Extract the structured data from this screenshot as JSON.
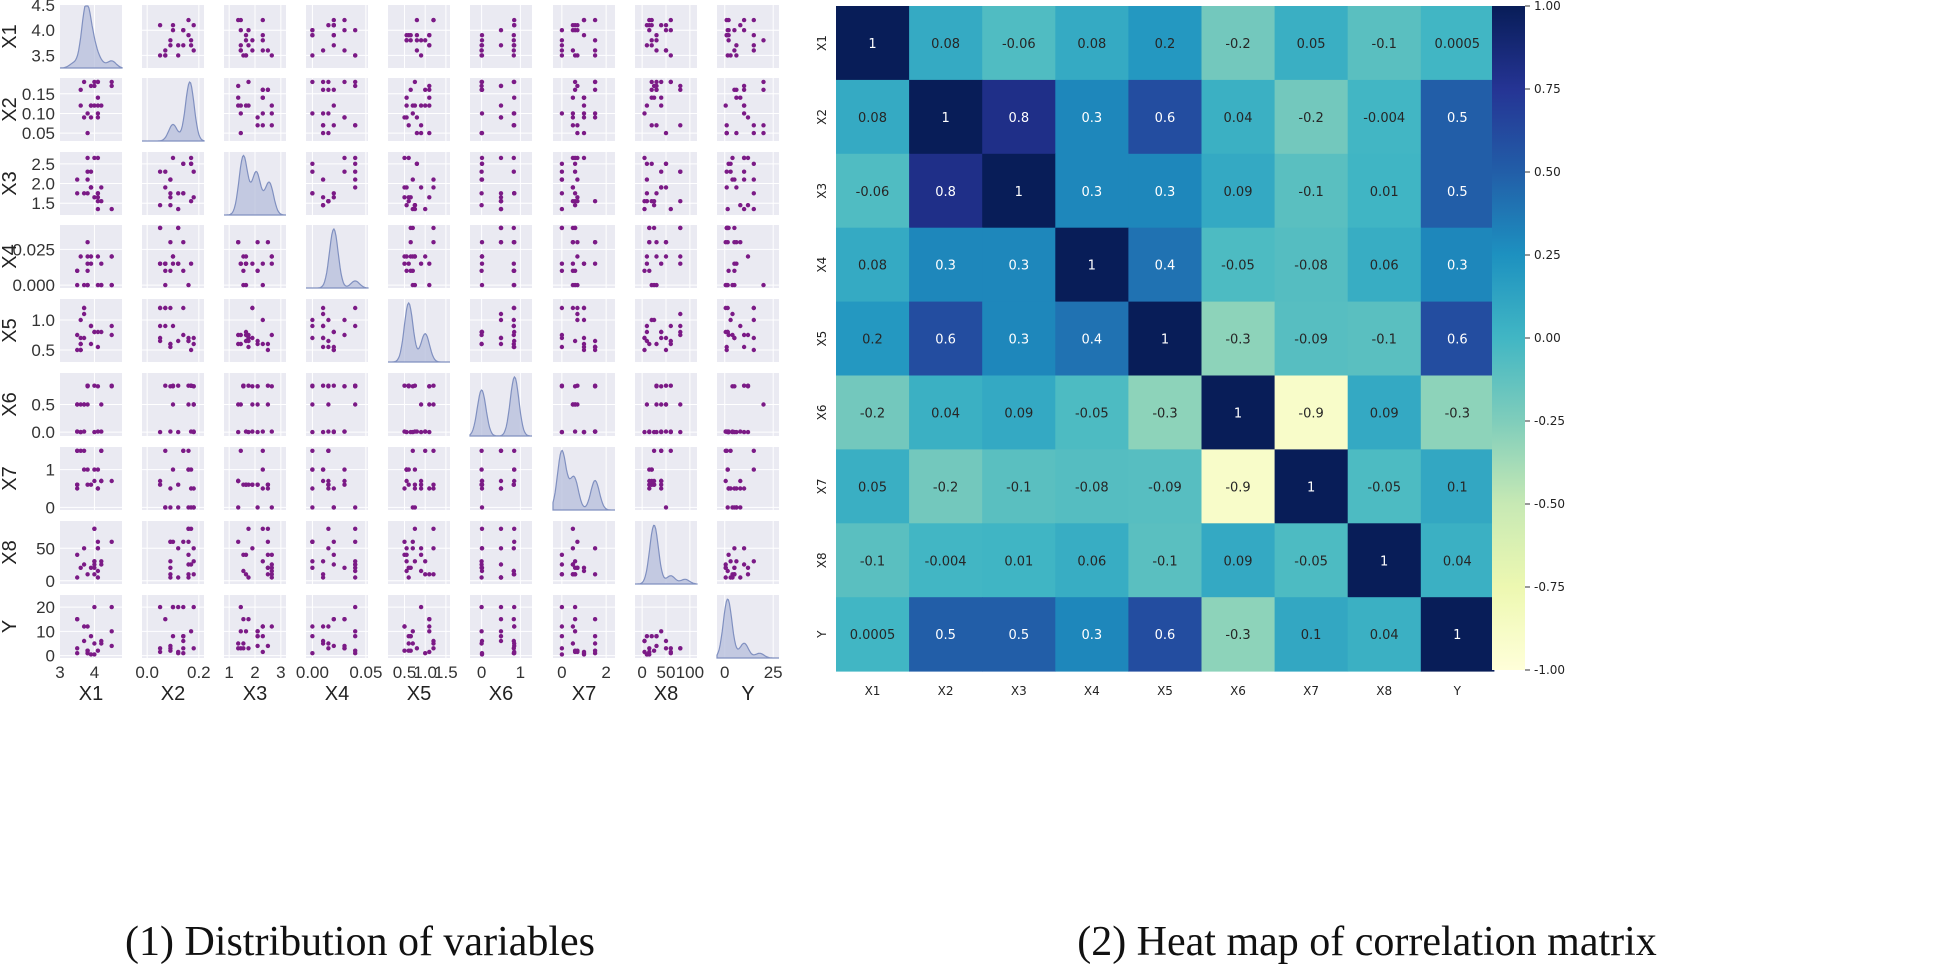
{
  "captions": {
    "left": "(1) Distribution of variables",
    "right": "(2) Heat map of correlation matrix"
  },
  "colors": {
    "panel_bg": "#eaeaf2",
    "grid": "#ffffff",
    "point": "#7b1a86",
    "kde_line": "#8090c0",
    "kde_fill": "#b5bedb"
  },
  "chart_data": [
    {
      "type": "scatter",
      "title": "Distribution of variables",
      "variables": [
        "X1",
        "X2",
        "X3",
        "X4",
        "X5",
        "X6",
        "X7",
        "X8",
        "Y"
      ],
      "x_ticks": {
        "X1": {
          "range": [
            3.0,
            4.8
          ],
          "ticks": [
            3,
            4
          ],
          "labels": [
            "3",
            "4"
          ]
        },
        "X2": {
          "range": [
            -0.02,
            0.22
          ],
          "ticks": [
            0.0,
            0.2
          ],
          "labels": [
            "0.0",
            "0.2"
          ]
        },
        "X3": {
          "range": [
            0.8,
            3.2
          ],
          "ticks": [
            1,
            2,
            3
          ],
          "labels": [
            "1",
            "2",
            "3"
          ]
        },
        "X4": {
          "range": [
            -0.006,
            0.052
          ],
          "ticks": [
            0.0,
            0.05
          ],
          "labels": [
            "0.00",
            "0.05"
          ]
        },
        "X5": {
          "range": [
            0.1,
            1.6
          ],
          "ticks": [
            0.5,
            1.0,
            1.5
          ],
          "labels": [
            "0.5",
            "1.0",
            "1.5"
          ]
        },
        "X6": {
          "range": [
            -0.3,
            1.3
          ],
          "ticks": [
            0,
            1
          ],
          "labels": [
            "0",
            "1"
          ]
        },
        "X7": {
          "range": [
            -0.4,
            2.4
          ],
          "ticks": [
            0,
            2
          ],
          "labels": [
            "0",
            "2"
          ]
        },
        "X8": {
          "range": [
            -15,
            115
          ],
          "ticks": [
            0,
            50,
            100
          ],
          "labels": [
            "0",
            "50",
            "100"
          ]
        },
        "Y": {
          "range": [
            -4,
            28
          ],
          "ticks": [
            0,
            25
          ],
          "labels": [
            "0",
            "25"
          ]
        }
      },
      "y_ticks": {
        "X1": {
          "range": [
            3.25,
            4.5
          ],
          "ticks": [
            3.5,
            4.0,
            4.5
          ],
          "labels": [
            "3.5",
            "4.0",
            "4.5"
          ]
        },
        "X2": {
          "range": [
            0.03,
            0.19
          ],
          "ticks": [
            0.05,
            0.1,
            0.15
          ],
          "labels": [
            "0.05",
            "0.10",
            "0.15"
          ]
        },
        "X3": {
          "range": [
            1.2,
            2.8
          ],
          "ticks": [
            1.5,
            2.0,
            2.5
          ],
          "labels": [
            "1.5",
            "2.0",
            "2.5"
          ]
        },
        "X4": {
          "range": [
            -0.002,
            0.042
          ],
          "ticks": [
            0.0,
            0.025
          ],
          "labels": [
            "0.000",
            "0.025"
          ]
        },
        "X5": {
          "range": [
            0.3,
            1.35
          ],
          "ticks": [
            0.5,
            1.0
          ],
          "labels": [
            "0.5",
            "1.0"
          ]
        },
        "X6": {
          "range": [
            -0.07,
            1.07
          ],
          "ticks": [
            0.0,
            0.5
          ],
          "labels": [
            "0.0",
            "0.5"
          ]
        },
        "X7": {
          "range": [
            -0.07,
            1.6
          ],
          "ticks": [
            0,
            1
          ],
          "labels": [
            "0",
            "1"
          ]
        },
        "X8": {
          "range": [
            -5,
            92
          ],
          "ticks": [
            0,
            50
          ],
          "labels": [
            "0",
            "50"
          ]
        },
        "Y": {
          "range": [
            -1,
            25
          ],
          "ticks": [
            0,
            10,
            20
          ],
          "labels": [
            "0",
            "10",
            "20"
          ]
        }
      },
      "levels": {
        "X1": [
          3.5,
          3.6,
          3.7,
          3.8,
          3.9,
          4.0,
          4.1,
          4.2,
          4.5
        ],
        "X2": [
          0.05,
          0.07,
          0.09,
          0.1,
          0.12,
          0.14,
          0.16,
          0.17,
          0.18
        ],
        "X3": [
          1.35,
          1.45,
          1.55,
          1.65,
          1.75,
          1.9,
          2.1,
          2.3,
          2.5,
          2.65
        ],
        "X4": [
          0.0,
          0.01,
          0.015,
          0.02,
          0.03,
          0.04
        ],
        "X5": [
          0.5,
          0.55,
          0.6,
          0.65,
          0.7,
          0.75,
          0.8,
          0.9,
          1.0,
          1.1,
          1.2
        ],
        "X6": [
          0.0,
          0.01,
          0.5,
          0.83,
          0.84
        ],
        "X7": [
          0.0,
          0.5,
          0.6,
          0.7,
          1.0,
          1.5
        ],
        "X8": [
          5,
          10,
          15,
          20,
          25,
          30,
          40,
          50,
          60,
          80
        ],
        "Y": [
          0.5,
          1,
          1.5,
          2,
          3,
          4,
          5,
          6,
          8,
          10,
          12,
          15,
          20
        ]
      },
      "diagonal_kde": {
        "X1": [
          [
            3.4,
            0.08
          ],
          [
            3.75,
            1.0
          ],
          [
            3.95,
            0.35
          ],
          [
            4.15,
            0.1
          ],
          [
            4.5,
            0.12
          ]
        ],
        "X2": [
          [
            0.1,
            0.28
          ],
          [
            0.165,
            1.0
          ]
        ],
        "X3": [
          [
            1.55,
            1.0
          ],
          [
            2.05,
            0.72
          ],
          [
            2.55,
            0.55
          ]
        ],
        "X4": [
          [
            0.02,
            1.0
          ],
          [
            0.04,
            0.12
          ]
        ],
        "X5": [
          [
            0.6,
            1.0
          ],
          [
            1.0,
            0.48
          ]
        ],
        "X6": [
          [
            0.0,
            0.78
          ],
          [
            0.85,
            1.0
          ]
        ],
        "X7": [
          [
            0.0,
            1.0
          ],
          [
            0.55,
            0.55
          ],
          [
            1.5,
            0.5
          ]
        ],
        "X8": [
          [
            25,
            1.0
          ],
          [
            60,
            0.14
          ],
          [
            90,
            0.08
          ]
        ],
        "Y": [
          [
            1.5,
            1.0
          ],
          [
            10,
            0.25
          ],
          [
            18,
            0.08
          ]
        ]
      },
      "point_color": "#7b1a86"
    },
    {
      "type": "heatmap",
      "title": "Heat map of correlation matrix",
      "labels": [
        "X1",
        "X2",
        "X3",
        "X4",
        "X5",
        "X6",
        "X7",
        "X8",
        "Y"
      ],
      "values": [
        [
          1,
          0.08,
          -0.06,
          0.08,
          0.2,
          -0.2,
          0.05,
          -0.1,
          0.0005
        ],
        [
          0.08,
          1,
          0.8,
          0.3,
          0.6,
          0.04,
          -0.2,
          -0.004,
          0.5
        ],
        [
          -0.06,
          0.8,
          1,
          0.3,
          0.3,
          0.09,
          -0.1,
          0.01,
          0.5
        ],
        [
          0.08,
          0.3,
          0.3,
          1,
          0.4,
          -0.05,
          -0.08,
          0.06,
          0.3
        ],
        [
          0.2,
          0.6,
          0.3,
          0.4,
          1,
          -0.3,
          -0.09,
          -0.1,
          0.6
        ],
        [
          -0.2,
          0.04,
          0.09,
          -0.05,
          -0.3,
          1,
          -0.9,
          0.09,
          -0.3
        ],
        [
          0.05,
          -0.2,
          -0.1,
          -0.08,
          -0.09,
          -0.9,
          1,
          -0.05,
          0.1
        ],
        [
          -0.1,
          -0.004,
          0.01,
          0.06,
          -0.1,
          0.09,
          -0.05,
          1,
          0.04
        ],
        [
          0.0005,
          0.5,
          0.5,
          0.3,
          0.6,
          -0.3,
          0.1,
          0.04,
          1
        ]
      ],
      "cell_text": [
        [
          "1",
          "0.08",
          "-0.06",
          "0.08",
          "0.2",
          "-0.2",
          "0.05",
          "-0.1",
          "0.0005"
        ],
        [
          "0.08",
          "1",
          "0.8",
          "0.3",
          "0.6",
          "0.04",
          "-0.2",
          "-0.004",
          "0.5"
        ],
        [
          "-0.06",
          "0.8",
          "1",
          "0.3",
          "0.3",
          "0.09",
          "-0.1",
          "0.01",
          "0.5"
        ],
        [
          "0.08",
          "0.3",
          "0.3",
          "1",
          "0.4",
          "-0.05",
          "-0.08",
          "0.06",
          "0.3"
        ],
        [
          "0.2",
          "0.6",
          "0.3",
          "0.4",
          "1",
          "-0.3",
          "-0.09",
          "-0.1",
          "0.6"
        ],
        [
          "-0.2",
          "0.04",
          "0.09",
          "-0.05",
          "-0.3",
          "1",
          "-0.9",
          "0.09",
          "-0.3"
        ],
        [
          "0.05",
          "-0.2",
          "-0.1",
          "-0.08",
          "-0.09",
          "-0.9",
          "1",
          "-0.05",
          "0.1"
        ],
        [
          "-0.1",
          "-0.004",
          "0.01",
          "0.06",
          "-0.1",
          "0.09",
          "-0.05",
          "1",
          "0.04"
        ],
        [
          "0.0005",
          "0.5",
          "0.5",
          "0.3",
          "0.6",
          "-0.3",
          "0.1",
          "0.04",
          "1"
        ]
      ],
      "colorbar": {
        "range": [
          -1.0,
          1.0
        ],
        "ticks": [
          1.0,
          0.75,
          0.5,
          0.25,
          0.0,
          -0.25,
          -0.5,
          -0.75,
          -1.0
        ],
        "tick_labels": [
          "1.00",
          "0.75",
          "0.50",
          "0.25",
          "0.00",
          "-0.25",
          "-0.50",
          "-0.75",
          "-1.00"
        ],
        "colormap": "YlGnBu",
        "stops": [
          "#ffffd9",
          "#edf8b1",
          "#c7e9b4",
          "#7fcdbb",
          "#41b6c4",
          "#1d91c0",
          "#225ea8",
          "#253494",
          "#081d58"
        ]
      }
    }
  ]
}
